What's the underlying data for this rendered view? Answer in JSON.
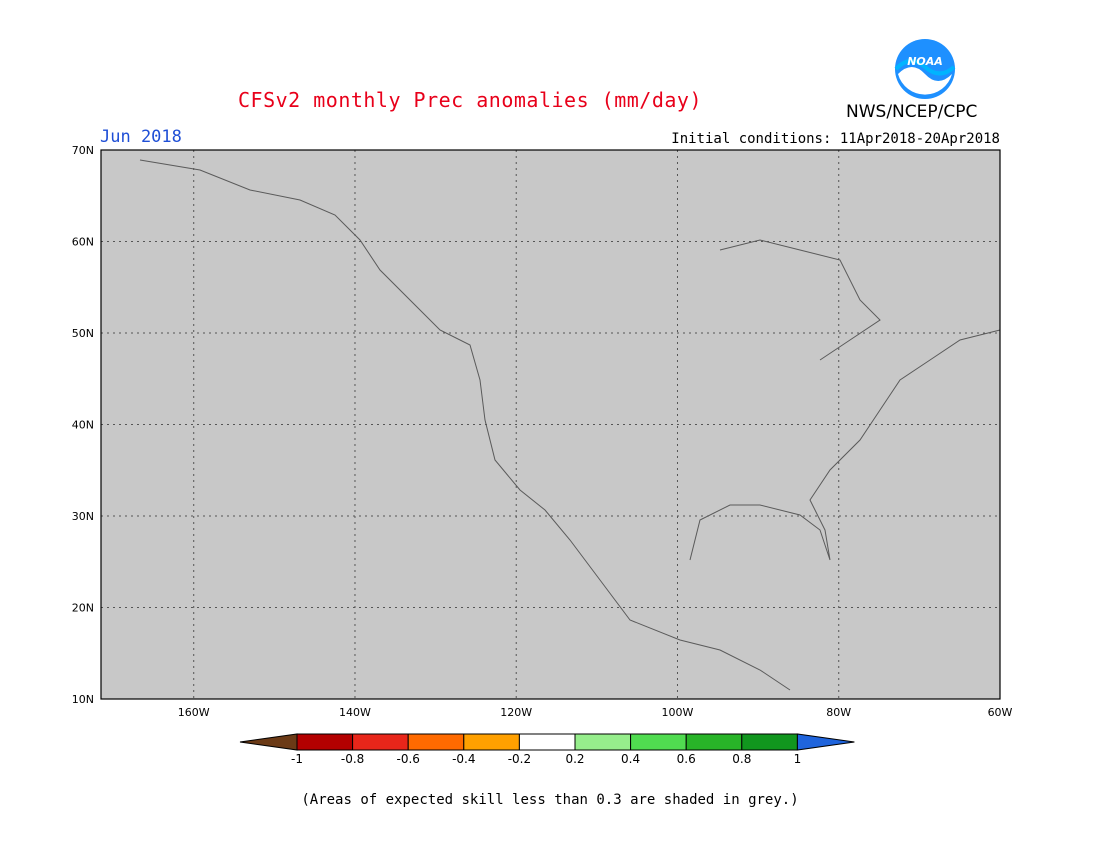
{
  "title": "CFSv2 monthly Prec anomalies (mm/day)",
  "valid_month": "Jun 2018",
  "initial_conditions": "Initial conditions: 11Apr2018-20Apr2018",
  "organization": "NWS/NCEP/CPC",
  "logo_text": "NOAA",
  "footnote": "(Areas of expected skill less than 0.3 are shaded in grey.)",
  "map": {
    "lon_ticks": [
      {
        "value": -160,
        "label": "160W"
      },
      {
        "value": -140,
        "label": "140W"
      },
      {
        "value": -120,
        "label": "120W"
      },
      {
        "value": -100,
        "label": "100W"
      },
      {
        "value": -80,
        "label": "80W"
      },
      {
        "value": -60,
        "label": "60W"
      }
    ],
    "lat_ticks": [
      {
        "value": 70,
        "label": "70N"
      },
      {
        "value": 60,
        "label": "60N"
      },
      {
        "value": 50,
        "label": "50N"
      },
      {
        "value": 40,
        "label": "40N"
      },
      {
        "value": 30,
        "label": "30N"
      },
      {
        "value": 20,
        "label": "20N"
      },
      {
        "value": 10,
        "label": "10N"
      }
    ],
    "lon_range": [
      -171.5,
      -60
    ],
    "lat_range": [
      10,
      70
    ],
    "background_color": "#c8c8c8"
  },
  "colorbar": {
    "labels": [
      "-1",
      "-0.8",
      "-0.6",
      "-0.4",
      "-0.2",
      "0.2",
      "0.4",
      "0.6",
      "0.8",
      "1"
    ],
    "colors": [
      "#6b3a16",
      "#b30000",
      "#e8261a",
      "#ff6a00",
      "#ffa000",
      "#ffffff",
      "#96ee8c",
      "#50dc50",
      "#28b428",
      "#11961e",
      "#1f64dc"
    ]
  }
}
